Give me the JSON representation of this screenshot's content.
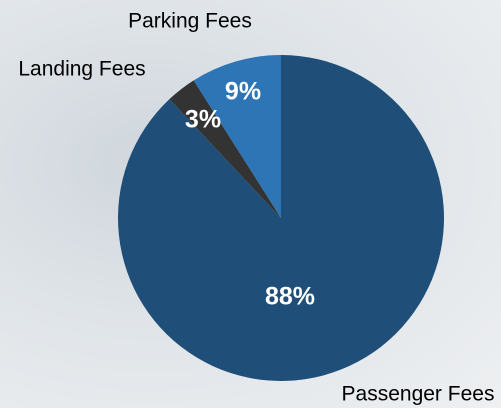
{
  "chart_data": {
    "type": "pie",
    "categories": [
      "Passenger Fees",
      "Landing Fees",
      "Parking Fees"
    ],
    "values": [
      88,
      3,
      9
    ],
    "value_labels": [
      "88%",
      "3%",
      "9%"
    ],
    "colors": [
      "#1f4e79",
      "#333333",
      "#2e75b6"
    ]
  }
}
